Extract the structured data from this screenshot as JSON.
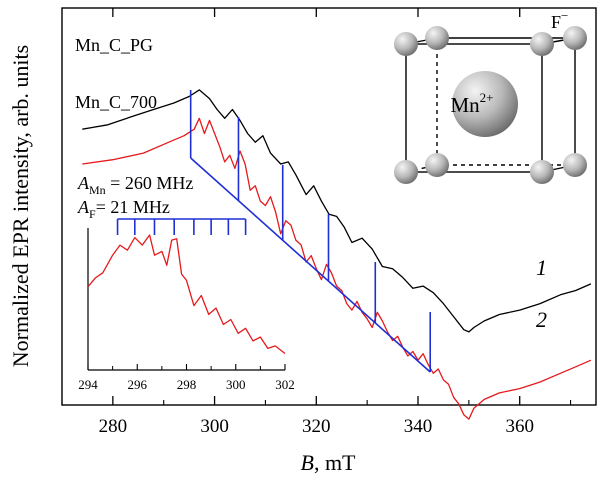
{
  "chart_data": {
    "type": "line",
    "xlabel_symbol": "B",
    "xlabel_unit": ", mT",
    "ylabel": "Normalized EPR intensity, arb. units",
    "xlim": [
      270,
      375
    ],
    "xticks": [
      280,
      300,
      320,
      340,
      360
    ],
    "series": [
      {
        "name": "Mn_C_PG",
        "number": "1",
        "color": "#000000",
        "x": [
          274,
          279,
          284,
          288,
          292,
          295,
          297,
          299,
          300.5,
          302,
          303.5,
          305,
          306.5,
          308,
          309.5,
          311,
          313,
          314.5,
          316,
          318,
          319.5,
          321,
          322.5,
          324,
          325.5,
          327,
          329,
          331,
          333,
          335,
          337,
          339,
          341,
          343,
          345,
          347,
          349,
          350,
          351,
          353,
          356,
          360,
          364,
          368,
          371,
          374
        ],
        "y": [
          0.88,
          0.9,
          0.94,
          0.97,
          1.0,
          1.03,
          1.06,
          1.02,
          0.97,
          0.93,
          0.97,
          0.92,
          0.86,
          0.82,
          0.85,
          0.77,
          0.72,
          0.73,
          0.67,
          0.58,
          0.62,
          0.55,
          0.49,
          0.48,
          0.43,
          0.36,
          0.38,
          0.33,
          0.25,
          0.24,
          0.2,
          0.15,
          0.16,
          0.13,
          0.08,
          0.02,
          -0.04,
          -0.05,
          -0.03,
          0.0,
          0.03,
          0.05,
          0.08,
          0.12,
          0.14,
          0.17
        ]
      },
      {
        "name": "Mn_C_700",
        "number": "2",
        "color": "#e41a1c",
        "x": [
          274,
          280,
          286,
          291,
          294,
          296,
          297,
          298,
          299,
          300,
          301,
          302,
          303,
          304,
          305,
          306,
          307,
          308,
          309,
          310,
          311,
          312,
          313,
          314,
          315,
          316,
          317,
          318,
          319,
          320,
          321,
          322,
          323,
          324,
          325,
          326,
          327,
          328,
          329,
          330,
          331,
          332,
          333,
          334,
          335,
          336,
          337,
          338,
          339,
          340,
          341,
          342,
          343,
          344,
          345,
          346,
          347,
          348,
          349,
          350,
          351,
          353,
          356,
          360,
          364,
          368,
          371,
          374
        ],
        "y": [
          0.72,
          0.74,
          0.77,
          0.82,
          0.85,
          0.88,
          0.93,
          0.86,
          0.92,
          0.86,
          0.8,
          0.73,
          0.76,
          0.7,
          0.78,
          0.72,
          0.6,
          0.62,
          0.55,
          0.53,
          0.57,
          0.5,
          0.4,
          0.46,
          0.44,
          0.37,
          0.35,
          0.27,
          0.3,
          0.24,
          0.19,
          0.26,
          0.22,
          0.16,
          0.14,
          0.08,
          0.05,
          0.09,
          0.04,
          0.01,
          -0.03,
          0.04,
          0.0,
          -0.05,
          -0.09,
          -0.07,
          -0.12,
          -0.16,
          -0.14,
          -0.18,
          -0.15,
          -0.2,
          -0.24,
          -0.22,
          -0.27,
          -0.29,
          -0.35,
          -0.38,
          -0.43,
          -0.45,
          -0.4,
          -0.36,
          -0.33,
          -0.31,
          -0.28,
          -0.24,
          -0.21,
          -0.18
        ]
      }
    ],
    "hyperfine": {
      "color": "#1f2fd6",
      "label_mn_prefix": "A",
      "label_mn_sub": "Mn",
      "label_mn_value": " = 260 MHz",
      "label_f_prefix": "A",
      "label_f_sub": "F",
      "label_f_value": "= 21 MHz",
      "line_positions_mT": [
        295.3,
        304.7,
        313.4,
        322.4,
        331.6,
        342.4
      ]
    },
    "inset": {
      "xlim": [
        294,
        302
      ],
      "xticks": [
        294,
        296,
        298,
        300,
        302
      ],
      "comb_positions_mT": [
        295.2,
        295.9,
        296.7,
        297.5,
        298.3,
        299.0,
        299.7,
        300.4
      ],
      "x": [
        294,
        294.3,
        294.6,
        295.0,
        295.3,
        295.6,
        295.9,
        296.2,
        296.5,
        296.7,
        297.0,
        297.2,
        297.4,
        297.6,
        297.8,
        298.0,
        298.3,
        298.6,
        298.9,
        299.2,
        299.5,
        299.8,
        300.1,
        300.4,
        300.7,
        301.0,
        301.3,
        301.6,
        302.0
      ],
      "y": [
        0.55,
        0.62,
        0.66,
        0.8,
        0.88,
        0.84,
        0.94,
        0.88,
        0.96,
        0.8,
        0.83,
        0.72,
        0.92,
        0.93,
        0.65,
        0.6,
        0.4,
        0.48,
        0.33,
        0.38,
        0.25,
        0.29,
        0.18,
        0.22,
        0.12,
        0.15,
        0.06,
        0.08,
        0.02
      ]
    },
    "structure": {
      "center_ion": "Mn",
      "center_charge": "2+",
      "ligand": "F",
      "ligand_charge": "−"
    }
  }
}
